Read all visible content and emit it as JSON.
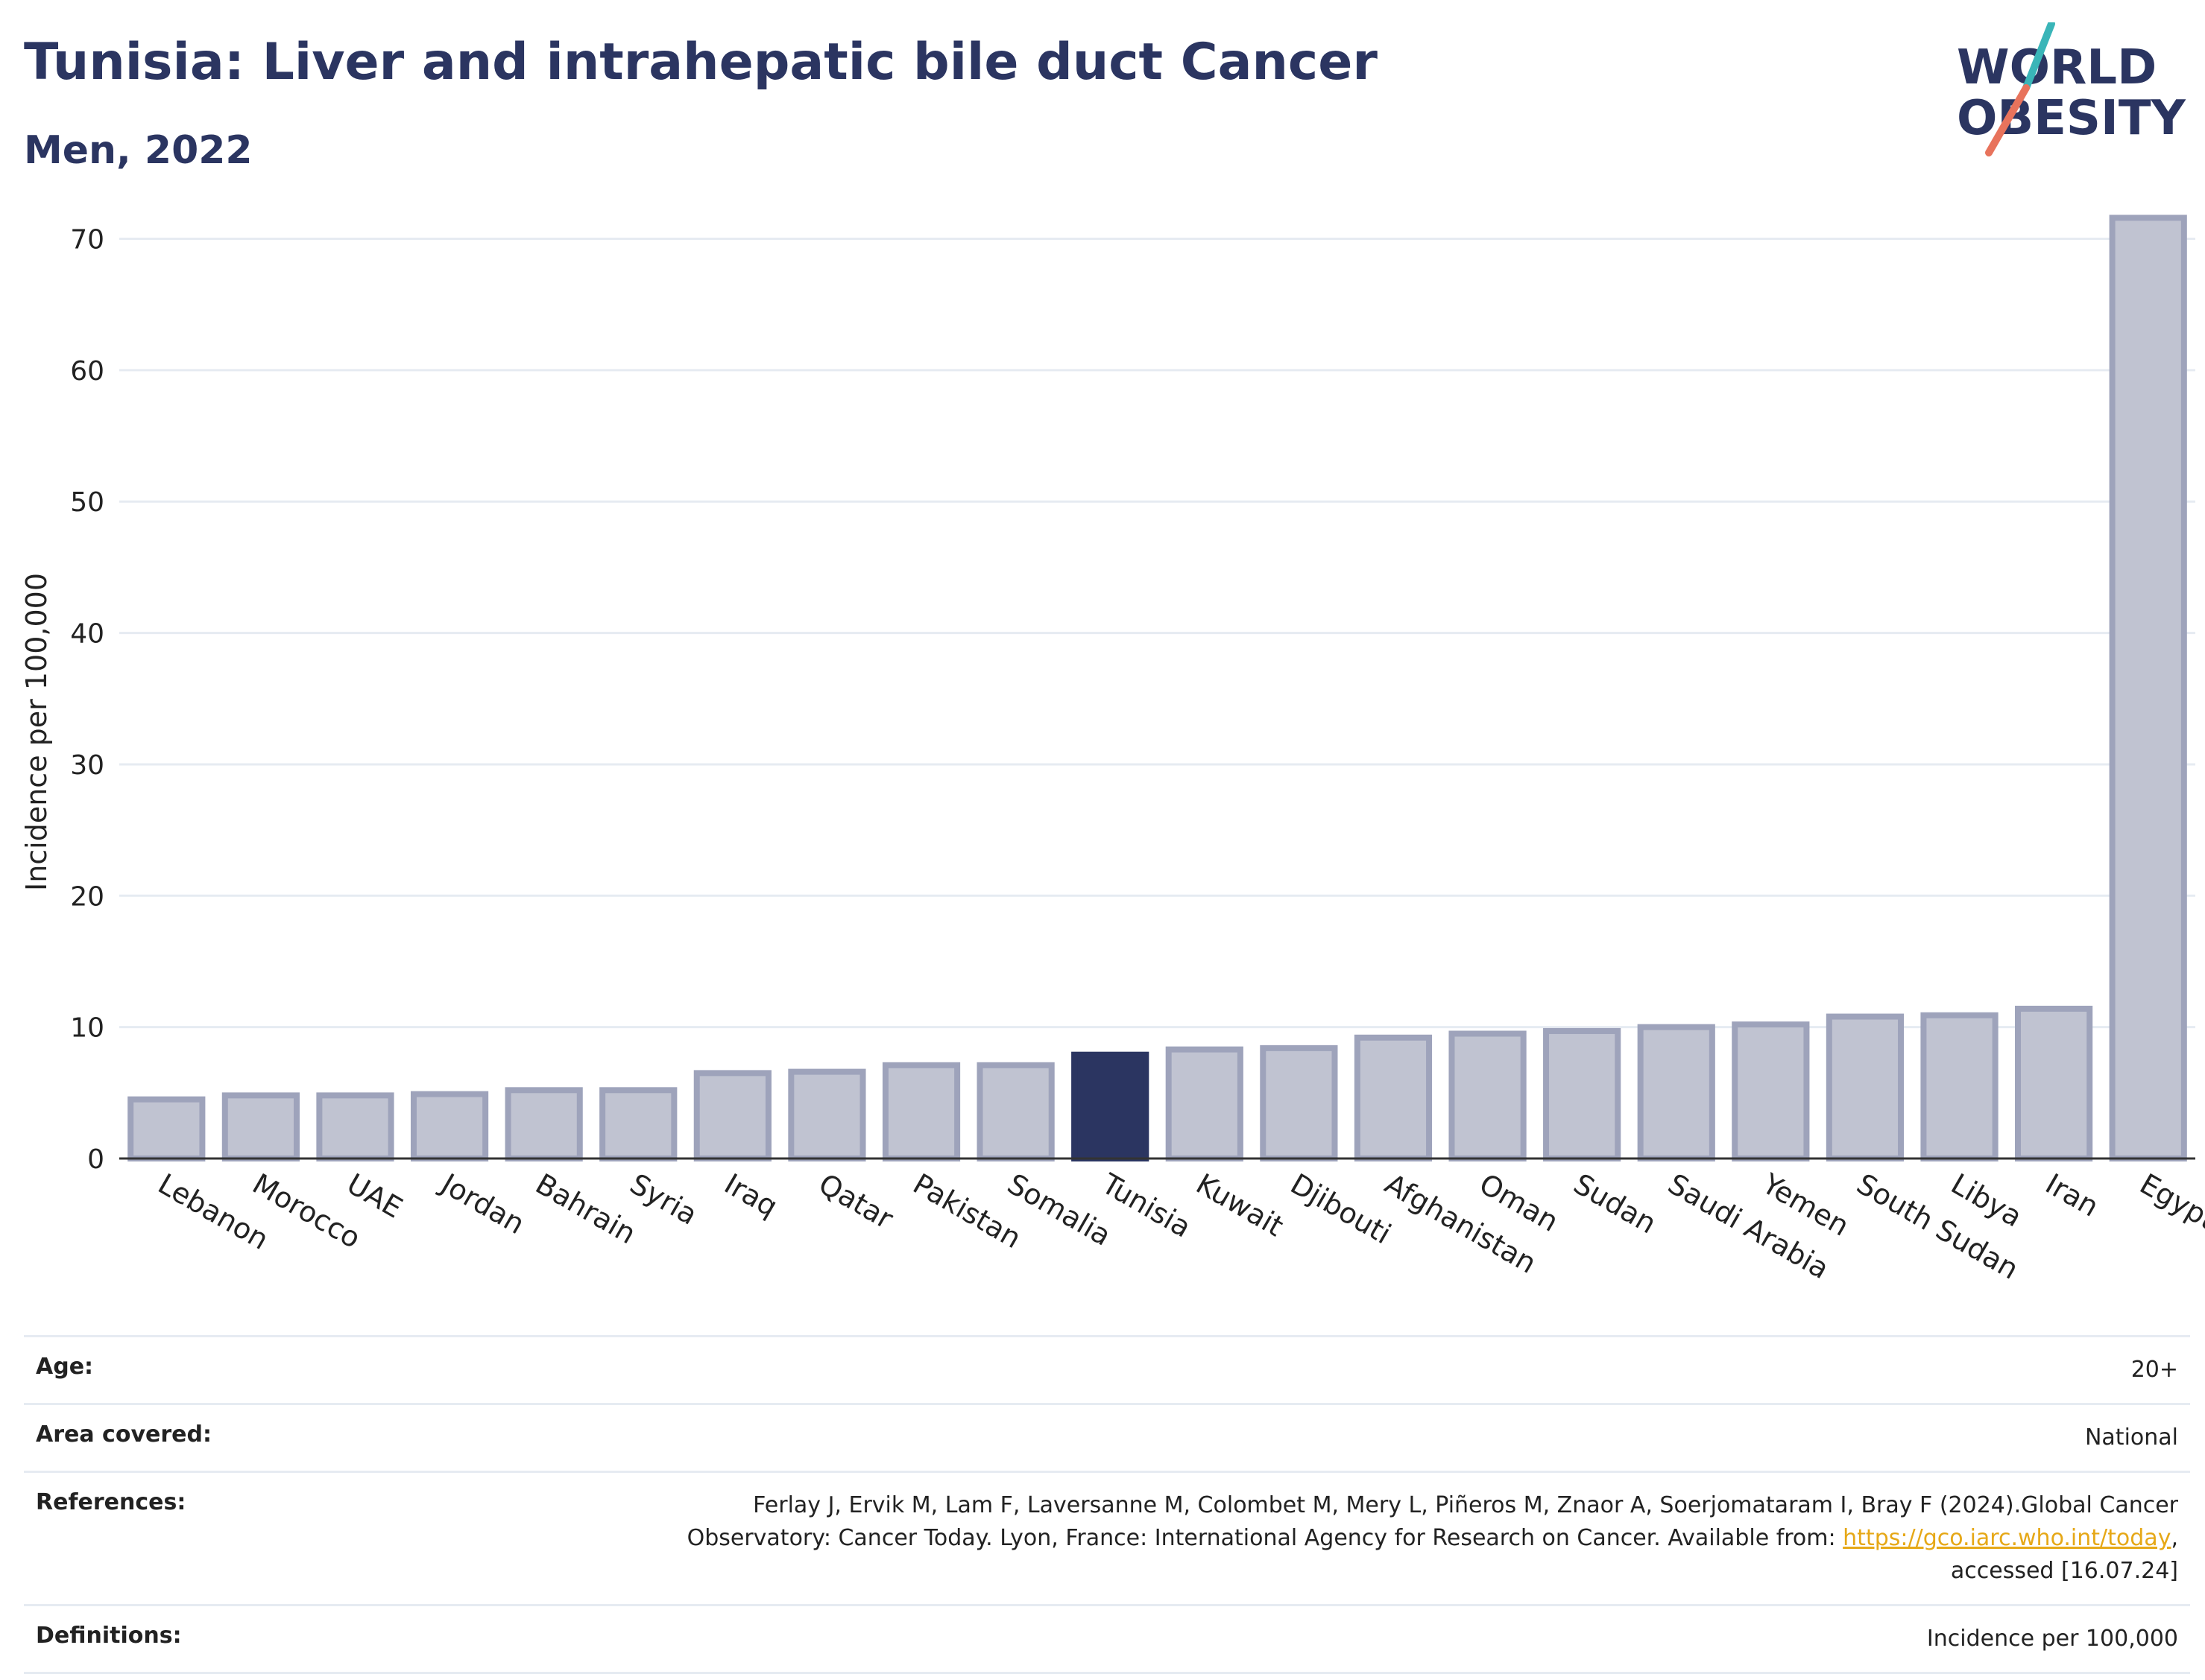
{
  "header": {
    "title": "Tunisia: Liver and intrahepatic bile duct Cancer",
    "subtitle": "Men, 2022"
  },
  "logo": {
    "line1": "WORLD",
    "line2": "OBESITY"
  },
  "colors": {
    "highlight": "#2b3561",
    "bar_fill": "#c0c3d1",
    "bar_stroke": "#9ea3bb",
    "grid": "#e6ebf2",
    "logo_text": "#2b3561",
    "logo_teal": "#3ab5b8",
    "logo_coral": "#e8735c"
  },
  "chart_data": {
    "type": "bar",
    "ylabel": "Incidence per 100,000",
    "ylim": [
      0,
      74
    ],
    "yticks": [
      0,
      10,
      20,
      30,
      40,
      50,
      60,
      70
    ],
    "grid": true,
    "highlight": "Tunisia",
    "categories": [
      "Lebanon",
      "Morocco",
      "UAE",
      "Jordan",
      "Bahrain",
      "Syria",
      "Iraq",
      "Qatar",
      "Pakistan",
      "Somalia",
      "Tunisia",
      "Kuwait",
      "Djibouti",
      "Afghanistan",
      "Oman",
      "Sudan",
      "Saudi Arabia",
      "Yemen",
      "South Sudan",
      "Libya",
      "Iran",
      "Egypt"
    ],
    "values": [
      4.5,
      4.8,
      4.8,
      4.9,
      5.2,
      5.2,
      6.5,
      6.6,
      7.1,
      7.1,
      7.9,
      8.3,
      8.4,
      9.2,
      9.5,
      9.7,
      10.0,
      10.2,
      10.8,
      10.9,
      11.4,
      71.6
    ]
  },
  "info": {
    "age_label": "Age:",
    "age_value": "20+",
    "area_label": "Area covered:",
    "area_value": "National",
    "references_label": "References:",
    "references_line1": "Ferlay J, Ervik M, Lam F, Laversanne M, Colombet M, Mery L, Piñeros M, Znaor A, Soerjomataram I, Bray F (2024).Global Cancer",
    "references_line2_pre": "Observatory: Cancer Today. Lyon, France: International Agency for Research on Cancer. Available from: ",
    "references_link": "https://gco.iarc.who.int/today",
    "references_line2_post": ",",
    "references_line3": "accessed [16.07.24]",
    "definitions_label": "Definitions:",
    "definitions_value": "Incidence per 100,000"
  }
}
